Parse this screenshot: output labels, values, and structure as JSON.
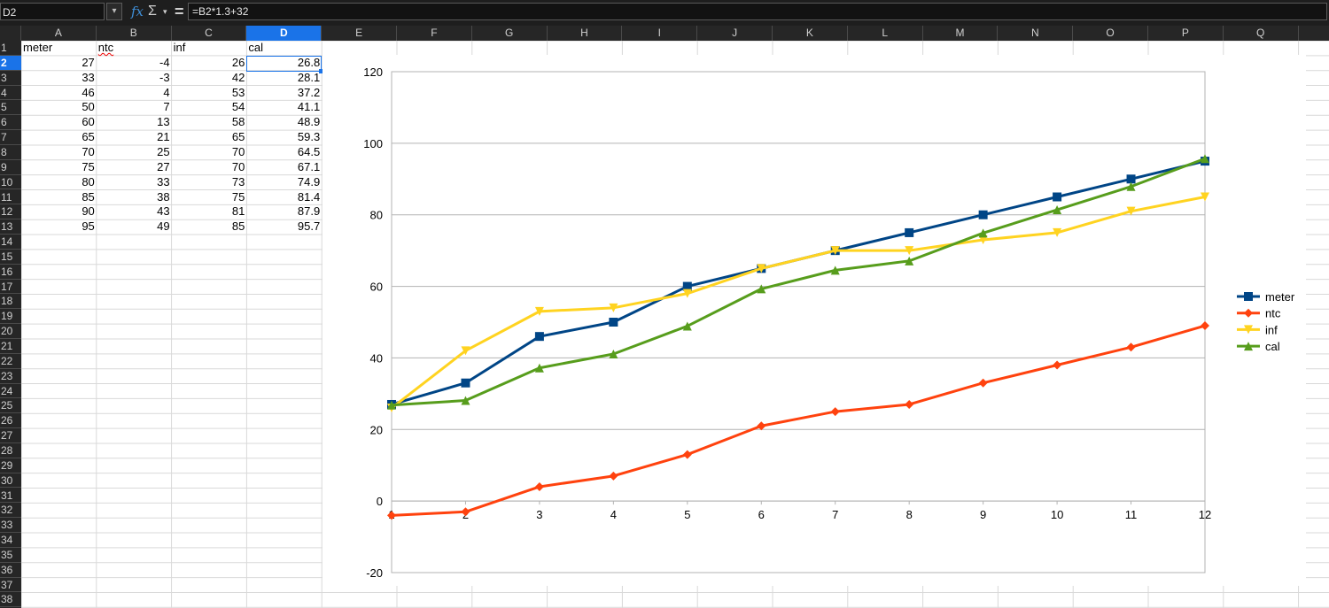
{
  "formula_bar": {
    "name_box": "D2",
    "formula": "=B2*1.3+32",
    "fx_icon": "𝑓x",
    "sum_icon": "Σ",
    "sum_dropdown_icon": "▾",
    "equals_icon": "="
  },
  "columns": [
    "A",
    "B",
    "C",
    "D",
    "E",
    "F",
    "G",
    "H",
    "I",
    "J",
    "K",
    "L",
    "M",
    "N",
    "O",
    "P",
    "Q"
  ],
  "selected_column": "D",
  "selected_row": 2,
  "rows": [
    "1",
    "2",
    "3",
    "4",
    "5",
    "6",
    "7",
    "8",
    "9",
    "10",
    "11",
    "12",
    "13",
    "14",
    "15",
    "16",
    "17",
    "18",
    "19",
    "20",
    "21",
    "22",
    "23",
    "24",
    "25",
    "26",
    "27",
    "28",
    "29",
    "30",
    "31",
    "32",
    "33",
    "34",
    "35",
    "36",
    "37",
    "38"
  ],
  "table": {
    "headers": [
      "meter",
      "ntc",
      "inf",
      "cal"
    ],
    "data": [
      [
        "27",
        "-4",
        "26",
        "26.8"
      ],
      [
        "33",
        "-3",
        "42",
        "28.1"
      ],
      [
        "46",
        "4",
        "53",
        "37.2"
      ],
      [
        "50",
        "7",
        "54",
        "41.1"
      ],
      [
        "60",
        "13",
        "58",
        "48.9"
      ],
      [
        "65",
        "21",
        "65",
        "59.3"
      ],
      [
        "70",
        "25",
        "70",
        "64.5"
      ],
      [
        "75",
        "27",
        "70",
        "67.1"
      ],
      [
        "80",
        "33",
        "73",
        "74.9"
      ],
      [
        "85",
        "38",
        "75",
        "81.4"
      ],
      [
        "90",
        "43",
        "81",
        "87.9"
      ],
      [
        "95",
        "49",
        "85",
        "95.7"
      ]
    ]
  },
  "chart_data": {
    "type": "line",
    "title": "",
    "xlabel": "",
    "ylabel": "",
    "x": [
      1,
      2,
      3,
      4,
      5,
      6,
      7,
      8,
      9,
      10,
      11,
      12
    ],
    "ylim": [
      -20,
      120
    ],
    "yticks": [
      -20,
      0,
      20,
      40,
      60,
      80,
      100,
      120
    ],
    "grid": "horizontal",
    "legend_position": "right",
    "series": [
      {
        "name": "meter",
        "color": "#004586",
        "marker": "square",
        "values": [
          27,
          33,
          46,
          50,
          60,
          65,
          70,
          75,
          80,
          85,
          90,
          95
        ]
      },
      {
        "name": "ntc",
        "color": "#ff420e",
        "marker": "diamond",
        "values": [
          -4,
          -3,
          4,
          7,
          13,
          21,
          25,
          27,
          33,
          38,
          43,
          49
        ]
      },
      {
        "name": "inf",
        "color": "#ffd320",
        "marker": "triangle-down",
        "values": [
          26,
          42,
          53,
          54,
          58,
          65,
          70,
          70,
          73,
          75,
          81,
          85
        ]
      },
      {
        "name": "cal",
        "color": "#579d1c",
        "marker": "triangle-up",
        "values": [
          26.8,
          28.1,
          37.2,
          41.1,
          48.9,
          59.3,
          64.5,
          67.1,
          74.9,
          81.4,
          87.9,
          95.7
        ]
      }
    ]
  }
}
